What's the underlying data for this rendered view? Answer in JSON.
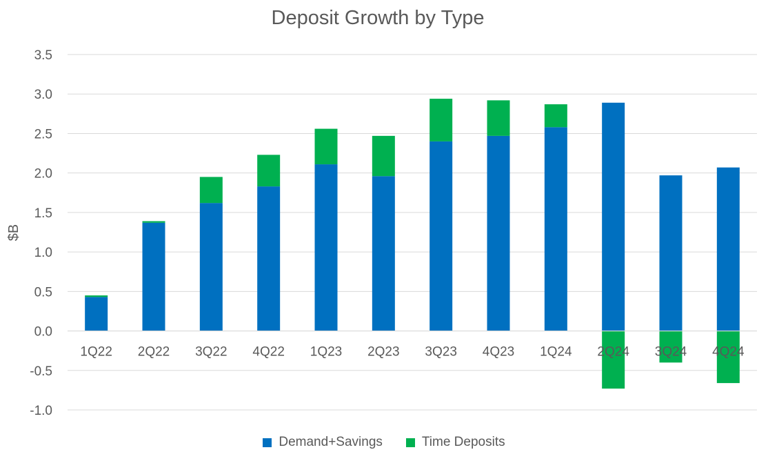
{
  "chart_data": {
    "type": "bar",
    "stacked": true,
    "title": "Deposit Growth by Type",
    "ylabel": "$B",
    "xlabel": "",
    "ylim": [
      -1.0,
      3.5
    ],
    "yticks": [
      "3.5",
      "3.0",
      "2.5",
      "2.0",
      "1.5",
      "1.0",
      "0.5",
      "0.0",
      "-0.5",
      "-1.0"
    ],
    "grid": true,
    "legend_position": "bottom",
    "categories": [
      "1Q22",
      "2Q22",
      "3Q22",
      "4Q22",
      "1Q23",
      "2Q23",
      "3Q23",
      "4Q23",
      "1Q24",
      "2Q24",
      "3Q24",
      "4Q24"
    ],
    "series": [
      {
        "name": "Demand+Savings",
        "color": "#0070C0",
        "values": [
          0.43,
          1.37,
          1.62,
          1.83,
          2.11,
          1.96,
          2.4,
          2.47,
          2.58,
          2.89,
          1.97,
          2.07
        ]
      },
      {
        "name": "Time Deposits",
        "color": "#00B050",
        "values": [
          0.02,
          0.02,
          0.33,
          0.4,
          0.45,
          0.51,
          0.54,
          0.45,
          0.29,
          -0.73,
          -0.4,
          -0.66
        ]
      }
    ]
  }
}
